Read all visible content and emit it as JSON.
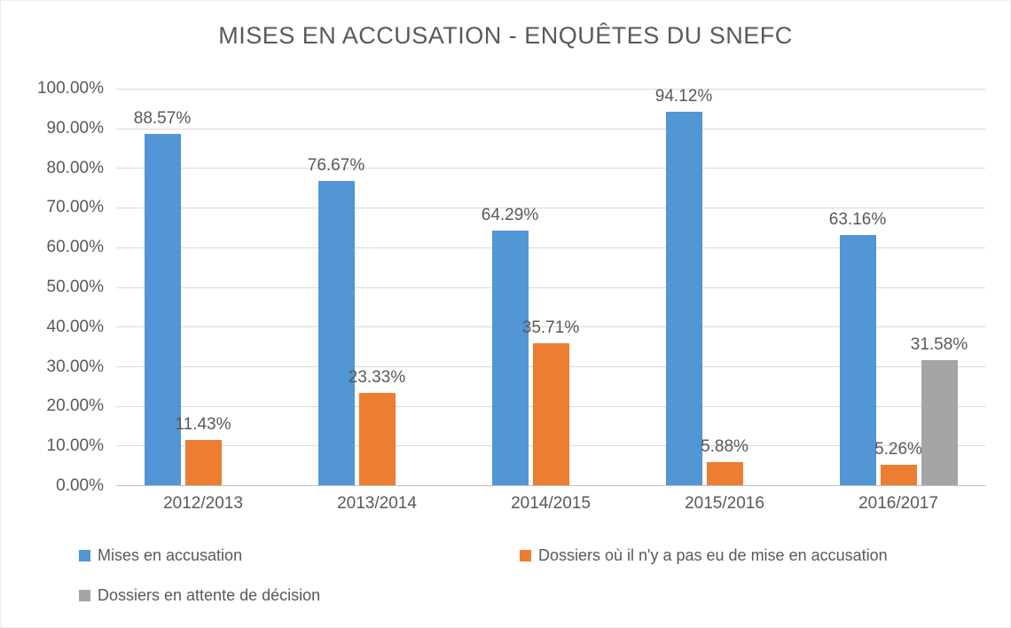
{
  "chart_data": {
    "type": "bar",
    "title": "MISES EN ACCUSATION - ENQUÊTES DU SNEFC",
    "categories": [
      "2012/2013",
      "2013/2014",
      "2014/2015",
      "2015/2016",
      "2016/2017"
    ],
    "series": [
      {
        "id": "mises-en-accusation",
        "name": "Mises en accusation",
        "color": "#5296d5",
        "values": [
          88.57,
          76.67,
          64.29,
          94.12,
          63.16
        ],
        "labels": [
          "88.57%",
          "76.67%",
          "64.29%",
          "94.12%",
          "63.16%"
        ]
      },
      {
        "id": "pas-de-mise-en-accusation",
        "name": "Dossiers où il n'y a pas eu de mise en accusation",
        "color": "#ed7d31",
        "values": [
          11.43,
          23.33,
          35.71,
          5.88,
          5.26
        ],
        "labels": [
          "11.43%",
          "23.33%",
          "35.71%",
          "5.88%",
          "5.26%"
        ]
      },
      {
        "id": "attente-de-decision",
        "name": "Dossiers en attente de décision",
        "color": "#a5a5a5",
        "values": [
          null,
          null,
          null,
          null,
          31.58
        ],
        "labels": [
          null,
          null,
          null,
          null,
          "31.58%"
        ]
      }
    ],
    "ylim": [
      0,
      100
    ],
    "yticks": [
      "100.00%",
      "90.00%",
      "80.00%",
      "70.00%",
      "60.00%",
      "50.00%",
      "40.00%",
      "30.00%",
      "20.00%",
      "10.00%",
      "0.00%"
    ],
    "grid": "horizontal",
    "legend_position": "bottom",
    "colors": {
      "gridline": "#d9d9d9",
      "axis_line": "#bfbfbf",
      "text": "#595959",
      "background": "#ffffff"
    }
  }
}
